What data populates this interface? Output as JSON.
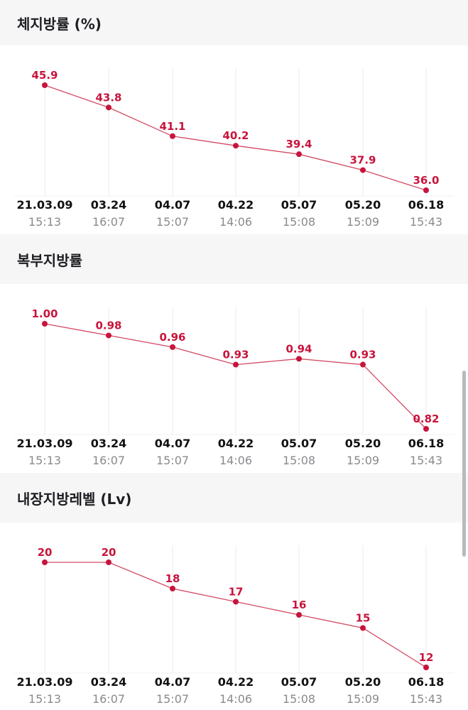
{
  "sections": [
    {
      "title": "체지방률 (%)"
    },
    {
      "title": "복부지방률"
    },
    {
      "title": "내장지방레벨 (Lv)"
    }
  ],
  "dates": [
    "21.03.09",
    "03.24",
    "04.07",
    "04.22",
    "05.07",
    "05.20",
    "06.18"
  ],
  "times": [
    "15:13",
    "16:07",
    "15:07",
    "14:06",
    "15:08",
    "15:09",
    "15:43"
  ],
  "colors": {
    "accent": "#c8143c",
    "line": "#d24a63",
    "grid": "#ebebed",
    "header_bg": "#f6f6f7",
    "time_text": "#8a8a8f"
  },
  "chart_data": [
    {
      "type": "line",
      "title": "체지방률 (%)",
      "categories": [
        "21.03.09",
        "03.24",
        "04.07",
        "04.22",
        "05.07",
        "05.20",
        "06.18"
      ],
      "values": [
        45.9,
        43.8,
        41.1,
        40.2,
        39.4,
        37.9,
        36.0
      ],
      "value_labels": [
        "45.9",
        "43.8",
        "41.1",
        "40.2",
        "39.4",
        "37.9",
        "36.0"
      ],
      "ylim": [
        36.0,
        45.9
      ],
      "grid": "vertical"
    },
    {
      "type": "line",
      "title": "복부지방률",
      "categories": [
        "21.03.09",
        "03.24",
        "04.07",
        "04.22",
        "05.07",
        "05.20",
        "06.18"
      ],
      "values": [
        1.0,
        0.98,
        0.96,
        0.93,
        0.94,
        0.93,
        0.82
      ],
      "value_labels": [
        "1.00",
        "0.98",
        "0.96",
        "0.93",
        "0.94",
        "0.93",
        "0.82"
      ],
      "ylim": [
        0.82,
        1.0
      ],
      "grid": "vertical"
    },
    {
      "type": "line",
      "title": "내장지방레벨 (Lv)",
      "categories": [
        "21.03.09",
        "03.24",
        "04.07",
        "04.22",
        "05.07",
        "05.20",
        "06.18"
      ],
      "values": [
        20,
        20,
        18,
        17,
        16,
        15,
        12
      ],
      "value_labels": [
        "20",
        "20",
        "18",
        "17",
        "16",
        "15",
        "12"
      ],
      "ylim": [
        12,
        20
      ],
      "grid": "vertical"
    }
  ]
}
